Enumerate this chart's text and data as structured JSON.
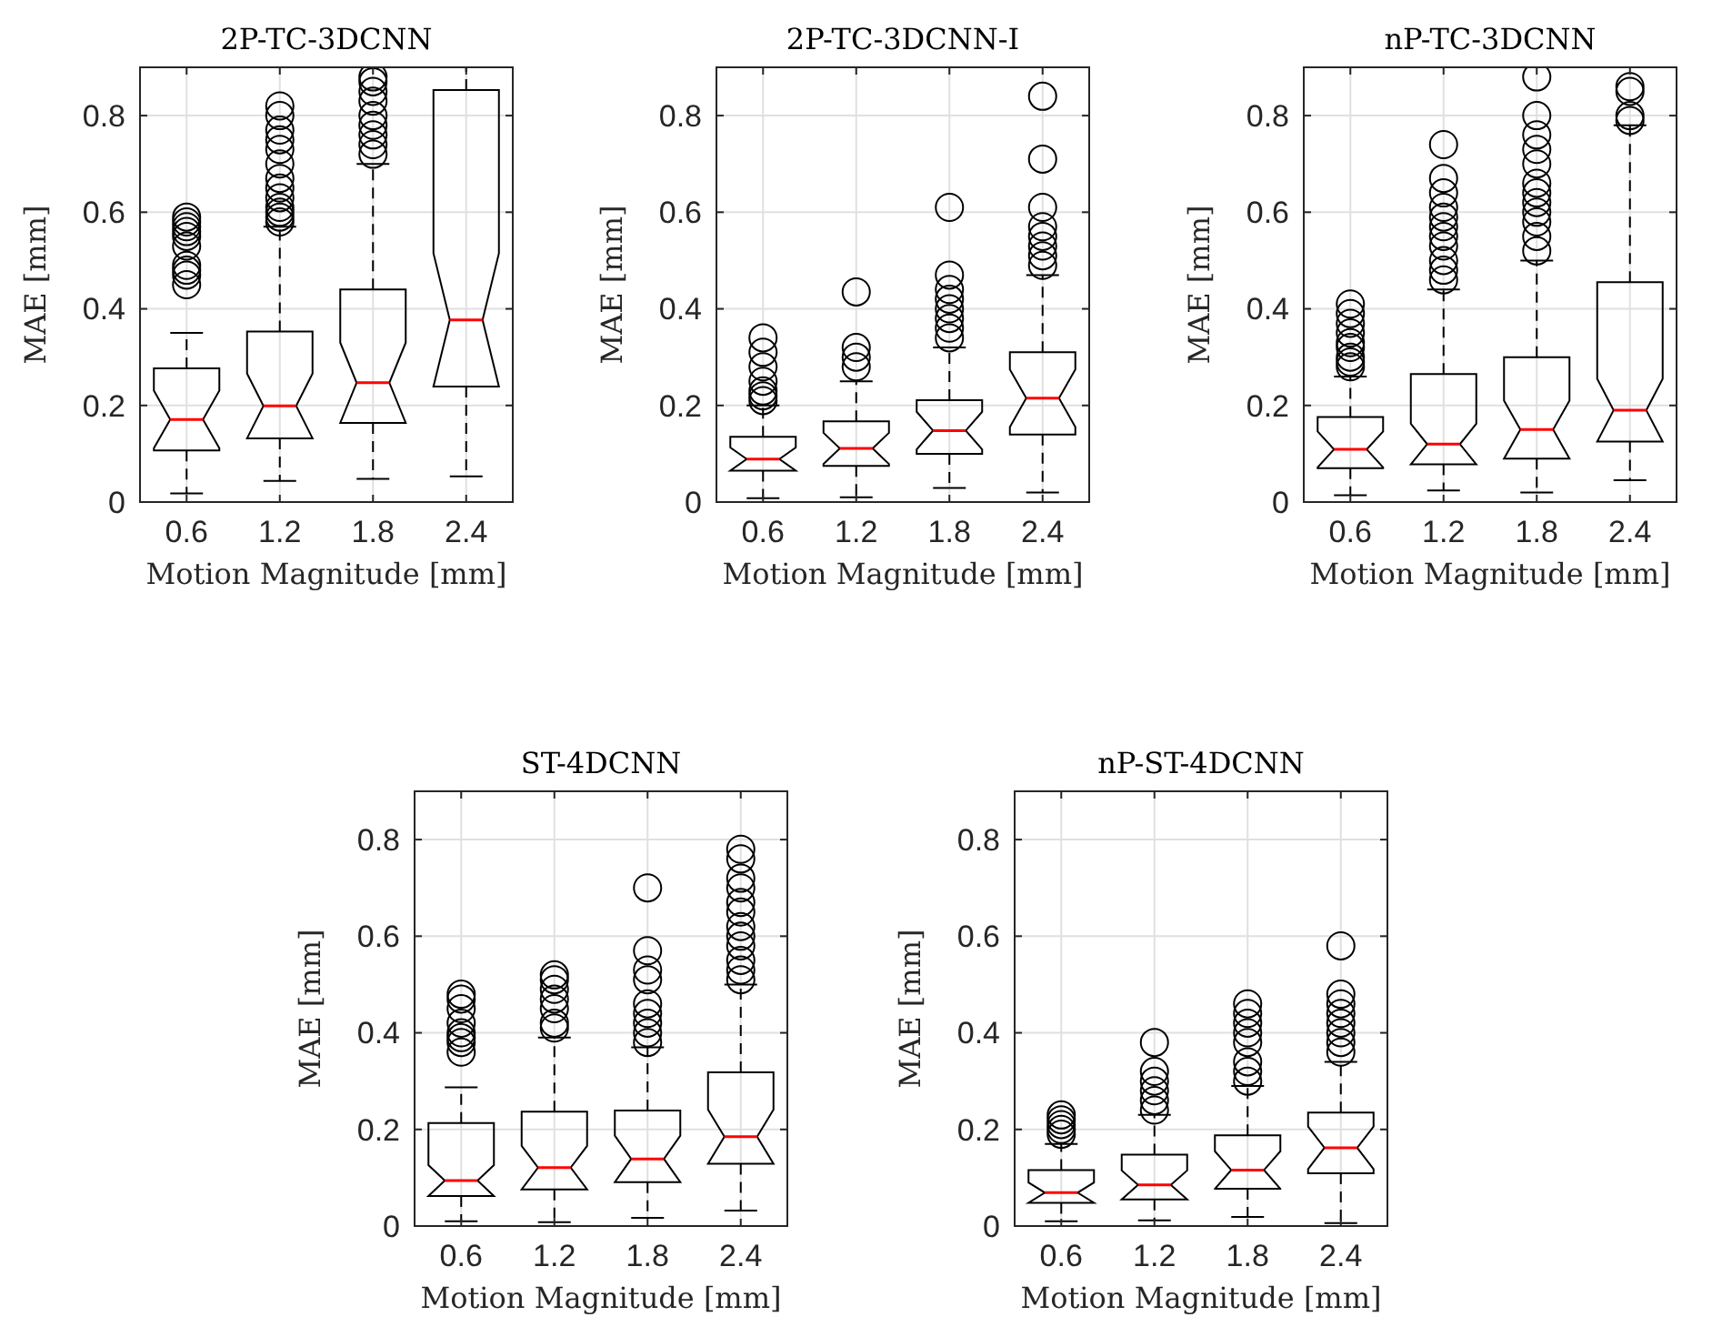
{
  "chart_data": [
    {
      "type": "box",
      "title": "2P-TC-3DCNN",
      "xlabel": "Motion Magnitude [mm]",
      "ylabel": "MAE [mm]",
      "categories": [
        "0.6",
        "1.2",
        "1.8",
        "2.4"
      ],
      "ylim": [
        0,
        0.9
      ],
      "yticks": [
        0,
        0.2,
        0.4,
        0.6,
        0.8
      ],
      "grid": true,
      "boxes": [
        {
          "low": 0.018,
          "q1": 0.107,
          "median": 0.171,
          "q3": 0.277,
          "high": 0.35,
          "outliers": [
            0.45,
            0.47,
            0.48,
            0.49,
            0.53,
            0.55,
            0.56,
            0.57,
            0.58,
            0.59
          ]
        },
        {
          "low": 0.044,
          "q1": 0.132,
          "median": 0.199,
          "q3": 0.353,
          "high": 0.57,
          "outliers": [
            0.58,
            0.59,
            0.6,
            0.61,
            0.63,
            0.65,
            0.67,
            0.7,
            0.73,
            0.75,
            0.77,
            0.8,
            0.82
          ]
        },
        {
          "low": 0.048,
          "q1": 0.164,
          "median": 0.247,
          "q3": 0.44,
          "high": 0.7,
          "outliers": [
            0.72,
            0.74,
            0.76,
            0.78,
            0.8,
            0.83,
            0.85,
            0.87,
            0.88
          ]
        },
        {
          "low": 0.053,
          "q1": 0.239,
          "median": 0.377,
          "q3": 0.853,
          "high": 0.9
        }
      ]
    },
    {
      "type": "box",
      "title": "2P-TC-3DCNN-I",
      "xlabel": "Motion Magnitude [mm]",
      "ylabel": "MAE [mm]",
      "categories": [
        "0.6",
        "1.2",
        "1.8",
        "2.4"
      ],
      "ylim": [
        0,
        0.9
      ],
      "yticks": [
        0,
        0.2,
        0.4,
        0.6,
        0.8
      ],
      "grid": true,
      "boxes": [
        {
          "low": 0.008,
          "q1": 0.065,
          "median": 0.089,
          "q3": 0.135,
          "high": 0.2,
          "outliers": [
            0.21,
            0.22,
            0.23,
            0.25,
            0.28,
            0.31,
            0.34
          ]
        },
        {
          "low": 0.01,
          "q1": 0.075,
          "median": 0.111,
          "q3": 0.167,
          "high": 0.25,
          "outliers": [
            0.28,
            0.3,
            0.32,
            0.435
          ]
        },
        {
          "low": 0.029,
          "q1": 0.1,
          "median": 0.148,
          "q3": 0.211,
          "high": 0.32,
          "outliers": [
            0.34,
            0.36,
            0.38,
            0.4,
            0.42,
            0.44,
            0.47,
            0.61
          ]
        },
        {
          "low": 0.02,
          "q1": 0.14,
          "median": 0.215,
          "q3": 0.31,
          "high": 0.47,
          "outliers": [
            0.49,
            0.51,
            0.53,
            0.55,
            0.57,
            0.61,
            0.71,
            0.84
          ]
        }
      ]
    },
    {
      "type": "box",
      "title": "nP-TC-3DCNN",
      "xlabel": "Motion Magnitude [mm]",
      "ylabel": "MAE [mm]",
      "categories": [
        "0.6",
        "1.2",
        "1.8",
        "2.4"
      ],
      "ylim": [
        0,
        0.9
      ],
      "yticks": [
        0,
        0.2,
        0.4,
        0.6,
        0.8
      ],
      "grid": true,
      "boxes": [
        {
          "low": 0.014,
          "q1": 0.07,
          "median": 0.109,
          "q3": 0.176,
          "high": 0.26,
          "outliers": [
            0.28,
            0.29,
            0.3,
            0.32,
            0.33,
            0.35,
            0.37,
            0.39,
            0.41
          ]
        },
        {
          "low": 0.024,
          "q1": 0.078,
          "median": 0.12,
          "q3": 0.265,
          "high": 0.44,
          "outliers": [
            0.46,
            0.48,
            0.5,
            0.53,
            0.55,
            0.57,
            0.59,
            0.61,
            0.64,
            0.67,
            0.74
          ]
        },
        {
          "low": 0.02,
          "q1": 0.09,
          "median": 0.15,
          "q3": 0.3,
          "high": 0.5,
          "outliers": [
            0.52,
            0.55,
            0.58,
            0.6,
            0.62,
            0.64,
            0.66,
            0.7,
            0.73,
            0.76,
            0.8,
            0.88
          ]
        },
        {
          "low": 0.045,
          "q1": 0.125,
          "median": 0.19,
          "q3": 0.455,
          "high": 0.78,
          "outliers": [
            0.79,
            0.8,
            0.85,
            0.86
          ]
        }
      ]
    },
    {
      "type": "box",
      "title": "ST-4DCNN",
      "xlabel": "Motion Magnitude [mm]",
      "ylabel": "MAE [mm]",
      "categories": [
        "0.6",
        "1.2",
        "1.8",
        "2.4"
      ],
      "ylim": [
        0,
        0.9
      ],
      "yticks": [
        0,
        0.2,
        0.4,
        0.6,
        0.8
      ],
      "grid": true,
      "boxes": [
        {
          "low": 0.01,
          "q1": 0.062,
          "median": 0.094,
          "q3": 0.213,
          "high": 0.287,
          "outliers": [
            0.36,
            0.38,
            0.39,
            0.4,
            0.42,
            0.45,
            0.47,
            0.48
          ]
        },
        {
          "low": 0.008,
          "q1": 0.076,
          "median": 0.121,
          "q3": 0.237,
          "high": 0.39,
          "outliers": [
            0.41,
            0.42,
            0.45,
            0.47,
            0.49,
            0.51,
            0.52
          ]
        },
        {
          "low": 0.017,
          "q1": 0.091,
          "median": 0.139,
          "q3": 0.239,
          "high": 0.37,
          "outliers": [
            0.38,
            0.4,
            0.42,
            0.44,
            0.46,
            0.51,
            0.53,
            0.57,
            0.7
          ]
        },
        {
          "low": 0.032,
          "q1": 0.129,
          "median": 0.185,
          "q3": 0.318,
          "high": 0.5,
          "outliers": [
            0.51,
            0.53,
            0.55,
            0.58,
            0.6,
            0.62,
            0.65,
            0.67,
            0.7,
            0.72,
            0.76,
            0.78
          ]
        }
      ]
    },
    {
      "type": "box",
      "title": "nP-ST-4DCNN",
      "xlabel": "Motion Magnitude [mm]",
      "ylabel": "MAE [mm]",
      "categories": [
        "0.6",
        "1.2",
        "1.8",
        "2.4"
      ],
      "ylim": [
        0,
        0.9
      ],
      "yticks": [
        0,
        0.2,
        0.4,
        0.6,
        0.8
      ],
      "grid": true,
      "boxes": [
        {
          "low": 0.01,
          "q1": 0.048,
          "median": 0.069,
          "q3": 0.116,
          "high": 0.17,
          "outliers": [
            0.19,
            0.2,
            0.21,
            0.22,
            0.23
          ]
        },
        {
          "low": 0.012,
          "q1": 0.055,
          "median": 0.085,
          "q3": 0.148,
          "high": 0.23,
          "outliers": [
            0.24,
            0.26,
            0.28,
            0.3,
            0.32,
            0.38
          ]
        },
        {
          "low": 0.019,
          "q1": 0.077,
          "median": 0.116,
          "q3": 0.188,
          "high": 0.29,
          "outliers": [
            0.3,
            0.32,
            0.34,
            0.38,
            0.4,
            0.42,
            0.44,
            0.46
          ]
        },
        {
          "low": 0.006,
          "q1": 0.109,
          "median": 0.162,
          "q3": 0.235,
          "high": 0.34,
          "outliers": [
            0.36,
            0.38,
            0.4,
            0.42,
            0.44,
            0.46,
            0.48,
            0.58
          ]
        }
      ]
    }
  ]
}
